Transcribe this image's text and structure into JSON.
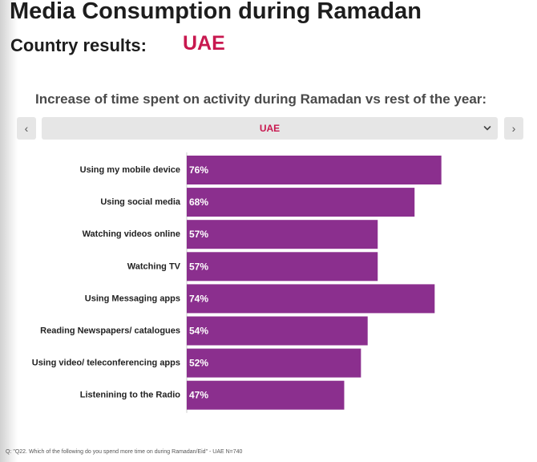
{
  "header": {
    "title": "Media Consumption during Ramadan",
    "country_label": "Country results:",
    "country_value": "UAE"
  },
  "selector": {
    "prev_label": "‹",
    "next_label": "›",
    "selected": "UAE"
  },
  "chart_data": {
    "type": "bar",
    "orientation": "horizontal",
    "title": "Increase of time spent on activity during Ramadan vs rest of the year:",
    "categories": [
      "Using my mobile device",
      "Using social media",
      "Watching videos online",
      "Watching TV",
      "Using Messaging apps",
      "Reading Newspapers/ catalogues",
      "Using video/ teleconferencing apps",
      "Listenining to the Radio"
    ],
    "values": [
      76,
      68,
      57,
      57,
      74,
      54,
      52,
      47
    ],
    "value_labels": [
      "76%",
      "68%",
      "57%",
      "57%",
      "74%",
      "54%",
      "52%",
      "47%"
    ],
    "unit": "%",
    "xlim": [
      0,
      100
    ],
    "bar_color": "#8b2f8e",
    "grid": false,
    "legend": "none"
  },
  "colors": {
    "accent": "#c8184f",
    "bar": "#8b2f8e",
    "title_text": "#1d1d1d"
  },
  "footnote": "Q: \"Q22. Which of the following do you spend more time on during Ramadan/Eid\" - UAE N=740"
}
